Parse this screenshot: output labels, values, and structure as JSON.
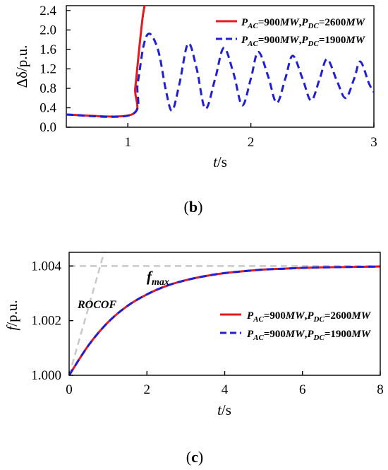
{
  "colors": {
    "red": "#e41a1c",
    "blue": "#1f1fd6",
    "guide": "#c8c8c8",
    "axis": "#000000"
  },
  "chart_data": [
    {
      "type": "line",
      "panel_label": "b",
      "xlabel": {
        "main": "t",
        "suffix": "/s"
      },
      "ylabel": "Δδ/p.u.",
      "xlim": [
        0.5,
        3.0
      ],
      "ylim": [
        0.0,
        2.5
      ],
      "x_ticks": [
        1,
        2,
        3
      ],
      "y_ticks": [
        0.0,
        0.4,
        0.8,
        1.2,
        1.6,
        2.0,
        2.4
      ],
      "y_tick_labels": [
        "0.0",
        "0.4",
        "0.8",
        "1.2",
        "1.6",
        "2.0",
        "2.4"
      ],
      "legend_position": "top-right",
      "series": [
        {
          "name": "PAC=900MW,PDC=2600MW",
          "name_parts": {
            "p_ac": "P",
            "sub_ac": "AC",
            "ac_value": "=900",
            "ac_unit": "MW",
            "sep": ",",
            "p_dc": "P",
            "sub_dc": "DC",
            "dc_value": "=2600",
            "dc_unit": "MW"
          },
          "color": "#e41a1c",
          "style": "solid",
          "x": [
            0.5,
            1.03,
            1.06,
            1.09,
            1.12,
            1.14
          ],
          "y": [
            0.26,
            0.26,
            0.8,
            1.55,
            2.25,
            2.55
          ]
        },
        {
          "name": "PAC=900MW,PDC=1900MW",
          "name_parts": {
            "p_ac": "P",
            "sub_ac": "AC",
            "ac_value": "=900",
            "ac_unit": "MW",
            "sep": ",",
            "p_dc": "P",
            "sub_dc": "DC",
            "dc_value": "=1900",
            "dc_unit": "MW"
          },
          "color": "#1f1fd6",
          "style": "dashed",
          "x": [
            0.5,
            1.03,
            1.08,
            1.13,
            1.18,
            1.25,
            1.31,
            1.36,
            1.42,
            1.49,
            1.56,
            1.63,
            1.71,
            1.78,
            1.86,
            1.93,
            2.0,
            2.06,
            2.14,
            2.21,
            2.28,
            2.34,
            2.42,
            2.49,
            2.56,
            2.62,
            2.7,
            2.77,
            2.84,
            2.89,
            2.96,
            3.0
          ],
          "y": [
            0.26,
            0.26,
            0.9,
            1.7,
            1.92,
            1.55,
            0.75,
            0.34,
            0.9,
            1.72,
            1.2,
            0.38,
            1.0,
            1.63,
            1.1,
            0.45,
            1.0,
            1.55,
            1.05,
            0.5,
            1.0,
            1.47,
            1.0,
            0.55,
            1.0,
            1.4,
            0.95,
            0.6,
            1.0,
            1.35,
            0.9,
            0.72
          ]
        }
      ]
    },
    {
      "type": "line",
      "panel_label": "c",
      "xlabel": {
        "main": "t",
        "suffix": "/s"
      },
      "ylabel": {
        "main": "f",
        "suffix": "/p.u."
      },
      "xlim": [
        0,
        8
      ],
      "ylim": [
        1.0,
        1.0045
      ],
      "x_ticks": [
        0,
        2,
        4,
        6,
        8
      ],
      "y_ticks": [
        1.0,
        1.002,
        1.004
      ],
      "y_tick_labels": [
        "1.000",
        "1.002",
        "1.004"
      ],
      "legend_position": "right",
      "annotations": {
        "fmax": {
          "main": "f",
          "sub": "max"
        },
        "rocof": "ROCOF"
      },
      "guides": {
        "fmax_level": 1.004,
        "rocof_line": {
          "x": [
            0,
            0.9
          ],
          "y": [
            1.0,
            1.0045
          ]
        }
      },
      "series": [
        {
          "name": "PAC=900MW,PDC=2600MW",
          "name_parts": {
            "p_ac": "P",
            "sub_ac": "AC",
            "ac_value": "=900",
            "ac_unit": "MW",
            "sep": ",",
            "p_dc": "P",
            "sub_dc": "DC",
            "dc_value": "=2600",
            "dc_unit": "MW"
          },
          "color": "#e41a1c",
          "style": "solid",
          "x": [
            0,
            0.5,
            1,
            1.5,
            2,
            2.5,
            3,
            3.5,
            4,
            4.5,
            5,
            5.5,
            6,
            6.5,
            7,
            7.5,
            8
          ],
          "y": [
            1.0,
            1.0011,
            1.00194,
            1.00254,
            1.00296,
            1.00327,
            1.00348,
            1.00363,
            1.00374,
            1.00381,
            1.00387,
            1.0039,
            1.00393,
            1.00395,
            1.00396,
            1.00397,
            1.00398
          ]
        },
        {
          "name": "PAC=900MW,PDC=1900MW",
          "name_parts": {
            "p_ac": "P",
            "sub_ac": "AC",
            "ac_value": "=900",
            "ac_unit": "MW",
            "sep": ",",
            "p_dc": "P",
            "sub_dc": "DC",
            "dc_value": "=1900",
            "dc_unit": "MW"
          },
          "color": "#1f1fd6",
          "style": "dashed",
          "x": [
            0,
            0.5,
            1,
            1.5,
            2,
            2.5,
            3,
            3.5,
            4,
            4.5,
            5,
            5.5,
            6,
            6.5,
            7,
            7.5,
            8
          ],
          "y": [
            1.0,
            1.0011,
            1.00194,
            1.00254,
            1.00296,
            1.00327,
            1.00348,
            1.00363,
            1.00374,
            1.00381,
            1.00387,
            1.0039,
            1.00393,
            1.00395,
            1.00396,
            1.00397,
            1.00398
          ]
        }
      ]
    }
  ]
}
